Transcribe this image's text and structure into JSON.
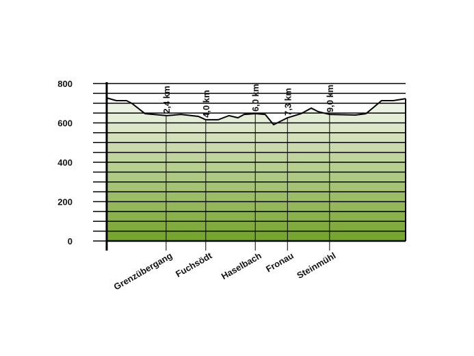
{
  "chart_data": {
    "type": "line",
    "x": [
      0,
      0.39,
      0.8,
      1.02,
      1.55,
      2.43,
      3.0,
      3.7,
      4.0,
      4.5,
      4.94,
      5.3,
      5.55,
      6.0,
      6.4,
      6.74,
      7.3,
      7.85,
      8.26,
      8.54,
      9.0,
      10.05,
      10.47,
      11.1,
      11.57,
      12.07
    ],
    "values": [
      727,
      713,
      713,
      699,
      647,
      637,
      643,
      633,
      616,
      616,
      637,
      626,
      643,
      647,
      643,
      591,
      626,
      647,
      675,
      657,
      643,
      640,
      647,
      713,
      713,
      723
    ],
    "color": "#000000",
    "xlim": [
      0,
      12.07
    ],
    "ylim": [
      0,
      800
    ],
    "yticks": [
      0,
      200,
      400,
      600,
      800
    ],
    "minor_yticks": [
      50,
      100,
      150,
      250,
      300,
      350,
      450,
      500,
      550,
      650,
      700,
      750
    ],
    "grid": true,
    "fill_bottom_color": "#78a530",
    "fill_top_color": "#ffffff",
    "markers": [
      {
        "x": 2.4,
        "label": "2,4 km",
        "place": "Grenzübergang"
      },
      {
        "x": 4.0,
        "label": "4,0 km",
        "place": "Fuchsödt"
      },
      {
        "x": 6.0,
        "label": "6,0 km",
        "place": "Haselbach"
      },
      {
        "x": 7.3,
        "label": "7,3 km",
        "place": "Fronau"
      },
      {
        "x": 9.0,
        "label": "9,0 km",
        "place": "Steinmühl"
      }
    ]
  }
}
